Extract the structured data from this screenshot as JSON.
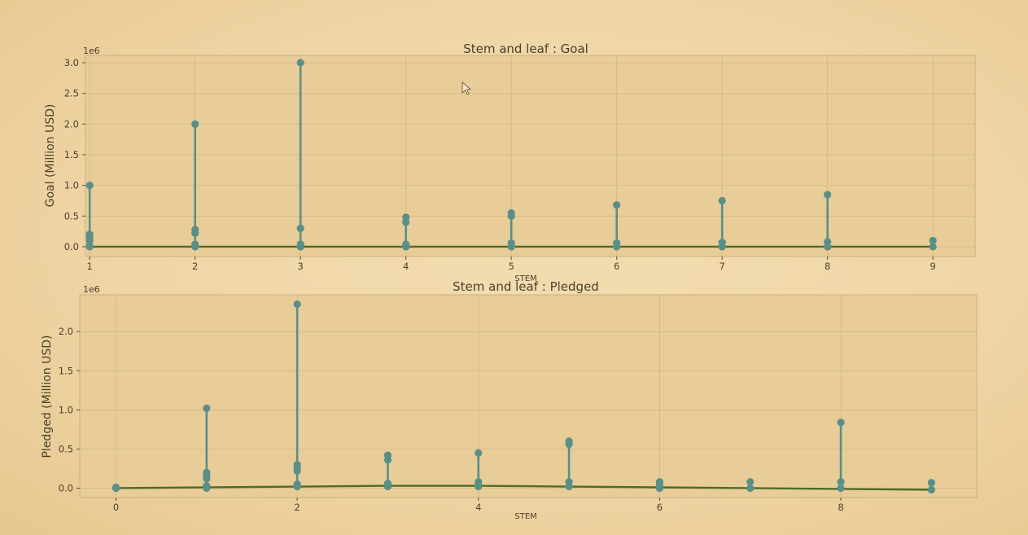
{
  "chart_data": [
    {
      "type": "stem",
      "title": "Stem and leaf : Goal",
      "xlabel": "STEM",
      "ylabel": "Goal (Million USD)",
      "y_offset_label": "1e6",
      "xlim": [
        0.96,
        9.4
      ],
      "ylim": [
        -0.16,
        3.12
      ],
      "x_ticks": [
        1,
        2,
        3,
        4,
        5,
        6,
        7,
        8,
        9
      ],
      "y_ticks": [
        0.0,
        0.5,
        1.0,
        1.5,
        2.0,
        2.5,
        3.0
      ],
      "grid": true,
      "baseline": {
        "x": [
          1,
          9
        ],
        "y": [
          0,
          0
        ]
      },
      "stems": [
        {
          "x": 1,
          "values": [
            1.0,
            0.2,
            0.15,
            0.1,
            0.02,
            0.0
          ]
        },
        {
          "x": 2,
          "values": [
            2.0,
            0.28,
            0.22,
            0.04,
            0.0
          ]
        },
        {
          "x": 3,
          "values": [
            3.0,
            0.3,
            0.04,
            0.0
          ]
        },
        {
          "x": 4,
          "values": [
            0.48,
            0.4,
            0.04,
            0.0
          ]
        },
        {
          "x": 5,
          "values": [
            0.55,
            0.5,
            0.06,
            0.0
          ]
        },
        {
          "x": 6,
          "values": [
            0.68,
            0.06,
            0.0
          ]
        },
        {
          "x": 7,
          "values": [
            0.75,
            0.07,
            0.0
          ]
        },
        {
          "x": 8,
          "values": [
            0.85,
            0.08,
            0.0
          ]
        },
        {
          "x": 9,
          "values": [
            0.1,
            0.0
          ]
        }
      ]
    },
    {
      "type": "stem",
      "title": "Stem and leaf : Pledged",
      "xlabel": "STEM",
      "ylabel": "Pledged (Million USD)",
      "y_offset_label": "1e6",
      "xlim": [
        -0.4,
        9.5
      ],
      "ylim": [
        -0.12,
        2.47
      ],
      "x_ticks": [
        0,
        2,
        4,
        6,
        8
      ],
      "y_ticks": [
        0.0,
        0.5,
        1.0,
        1.5,
        2.0
      ],
      "grid": true,
      "baseline": {
        "x": [
          0,
          2,
          3,
          4,
          5,
          6,
          7,
          8,
          9
        ],
        "y": [
          0,
          0.02,
          0.03,
          0.03,
          0.02,
          0.01,
          0.0,
          -0.01,
          -0.02
        ]
      },
      "stems": [
        {
          "x": 0,
          "values": [
            0.01,
            0.0
          ]
        },
        {
          "x": 1,
          "values": [
            1.02,
            0.2,
            0.17,
            0.12,
            0.03,
            0.0
          ]
        },
        {
          "x": 2,
          "values": [
            2.35,
            0.3,
            0.25,
            0.22,
            0.05,
            0.02
          ]
        },
        {
          "x": 3,
          "values": [
            0.42,
            0.36,
            0.06,
            0.02
          ]
        },
        {
          "x": 4,
          "values": [
            0.45,
            0.08,
            0.04,
            0.02
          ]
        },
        {
          "x": 5,
          "values": [
            0.6,
            0.56,
            0.08,
            0.02
          ]
        },
        {
          "x": 6,
          "values": [
            0.08,
            0.04,
            0.0
          ]
        },
        {
          "x": 7,
          "values": [
            0.08,
            0.0
          ]
        },
        {
          "x": 8,
          "values": [
            0.84,
            0.08,
            0.0
          ]
        },
        {
          "x": 9,
          "values": [
            0.07,
            -0.02
          ]
        }
      ]
    }
  ]
}
